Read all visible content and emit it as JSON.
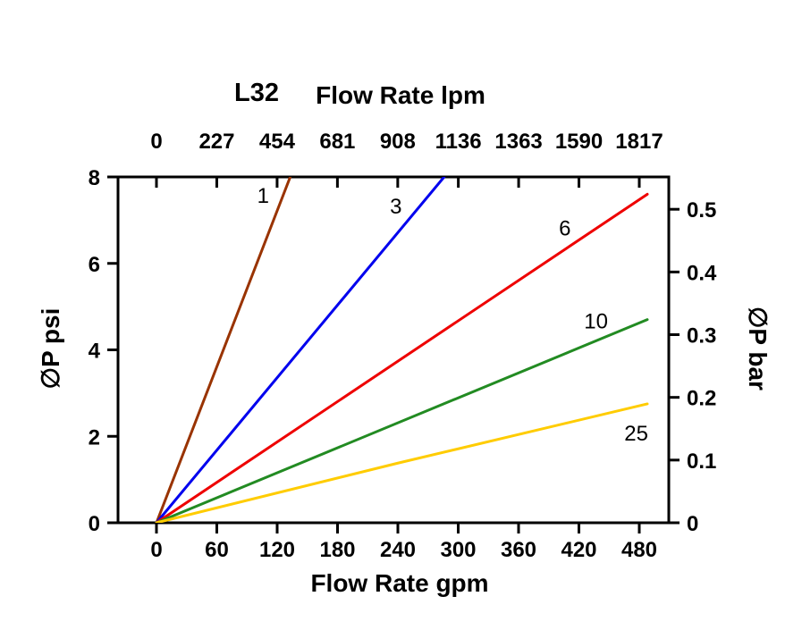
{
  "chart": {
    "model_label": "L32",
    "top_axis_title": "Flow Rate lpm",
    "bottom_axis_title": "Flow Rate gpm",
    "left_axis_title": "∅P psi",
    "right_axis_title": "∅P bar"
  },
  "chart_data": {
    "type": "line",
    "title": "L32 Flow Rate lpm",
    "xlabel": "Flow Rate gpm",
    "x2label": "Flow Rate lpm",
    "ylabel": "∅P psi",
    "y2label": "∅P bar",
    "xlim": [
      0,
      480
    ],
    "ylim": [
      0,
      8
    ],
    "grid": false,
    "legend": "inline-line-labels",
    "x_ticks_gpm": [
      0,
      60,
      120,
      180,
      240,
      300,
      360,
      420,
      480
    ],
    "x2_ticks_lpm": [
      0,
      227,
      454,
      681,
      908,
      1136,
      1363,
      1590,
      1817
    ],
    "y_ticks_psi": [
      0,
      2,
      4,
      6,
      8
    ],
    "y2_ticks_bar": [
      0,
      0.1,
      0.2,
      0.3,
      0.4,
      0.5
    ],
    "lpm_per_gpm": 3.78541,
    "psi_per_bar": 14.5038,
    "series": [
      {
        "name": "1",
        "color": "#993300",
        "points": [
          [
            0,
            0
          ],
          [
            133,
            8
          ]
        ],
        "label_pos": [
          106,
          7.4
        ]
      },
      {
        "name": "3",
        "color": "#0000EE",
        "points": [
          [
            0,
            0
          ],
          [
            286,
            8
          ]
        ],
        "label_pos": [
          238,
          7.15
        ]
      },
      {
        "name": "6",
        "color": "#EE0000",
        "points": [
          [
            0,
            0
          ],
          [
            488,
            7.6
          ]
        ],
        "label_pos": [
          406,
          6.65
        ]
      },
      {
        "name": "10",
        "color": "#228B22",
        "points": [
          [
            0,
            0
          ],
          [
            488,
            4.7
          ]
        ],
        "label_pos": [
          437,
          4.5
        ]
      },
      {
        "name": "25",
        "color": "#FFCC00",
        "points": [
          [
            0,
            0
          ],
          [
            240,
            1.38
          ],
          [
            488,
            2.75
          ]
        ],
        "label_pos": [
          477,
          1.9
        ]
      }
    ]
  }
}
